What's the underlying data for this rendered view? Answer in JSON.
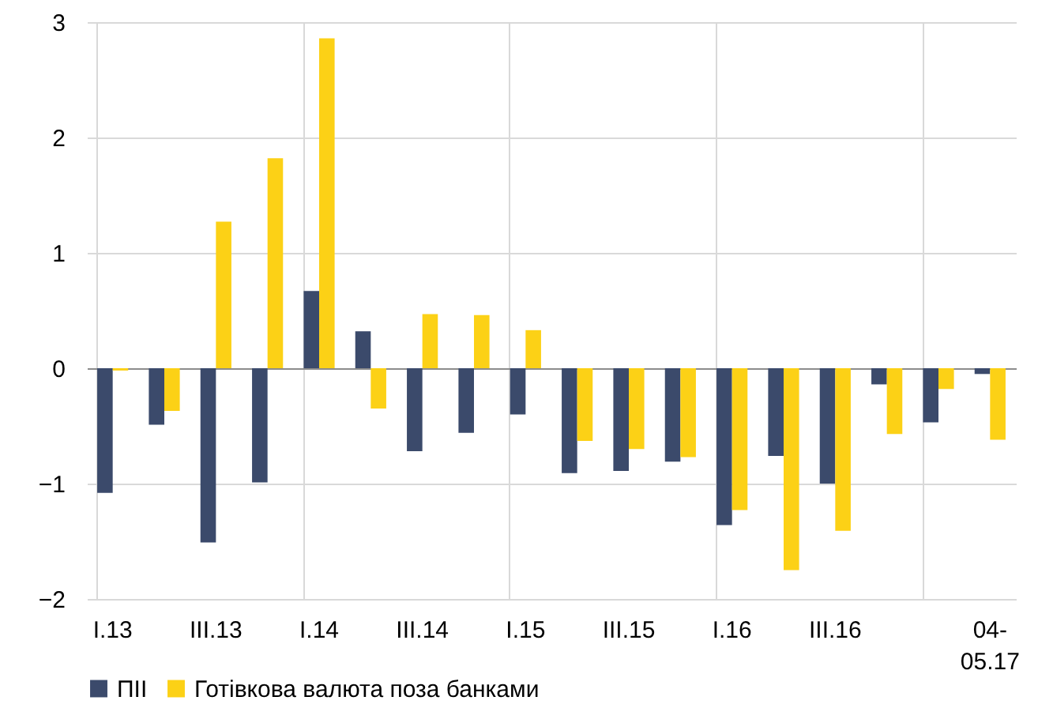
{
  "chart_data": {
    "type": "bar",
    "categories": [
      "I.13",
      null,
      "III.13",
      null,
      "I.14",
      null,
      "III.14",
      null,
      "I.15",
      null,
      "III.15",
      null,
      "I.16",
      null,
      "III.16",
      null,
      null,
      "04-05.17"
    ],
    "series": [
      {
        "name": "ПІІ",
        "color": "#3b4a6b",
        "values": [
          -1.08,
          -0.49,
          -1.51,
          -0.99,
          0.67,
          0.32,
          -0.72,
          -0.56,
          -0.4,
          -0.91,
          -0.89,
          -0.81,
          -1.36,
          -0.76,
          -1.0,
          -0.14,
          -0.47,
          -0.05
        ]
      },
      {
        "name": "Готівкова валюта поза банками",
        "color": "#fcd116",
        "values": [
          -0.02,
          -0.37,
          1.27,
          1.82,
          2.86,
          -0.35,
          0.47,
          0.46,
          0.33,
          -0.63,
          -0.7,
          -0.77,
          -1.23,
          -1.75,
          -1.41,
          -0.57,
          -0.18,
          -0.62
        ]
      }
    ],
    "ylim": [
      -2,
      3
    ],
    "yticks": [
      -2,
      -1,
      0,
      1,
      2,
      3
    ],
    "grid": true,
    "legend": "bottom"
  }
}
